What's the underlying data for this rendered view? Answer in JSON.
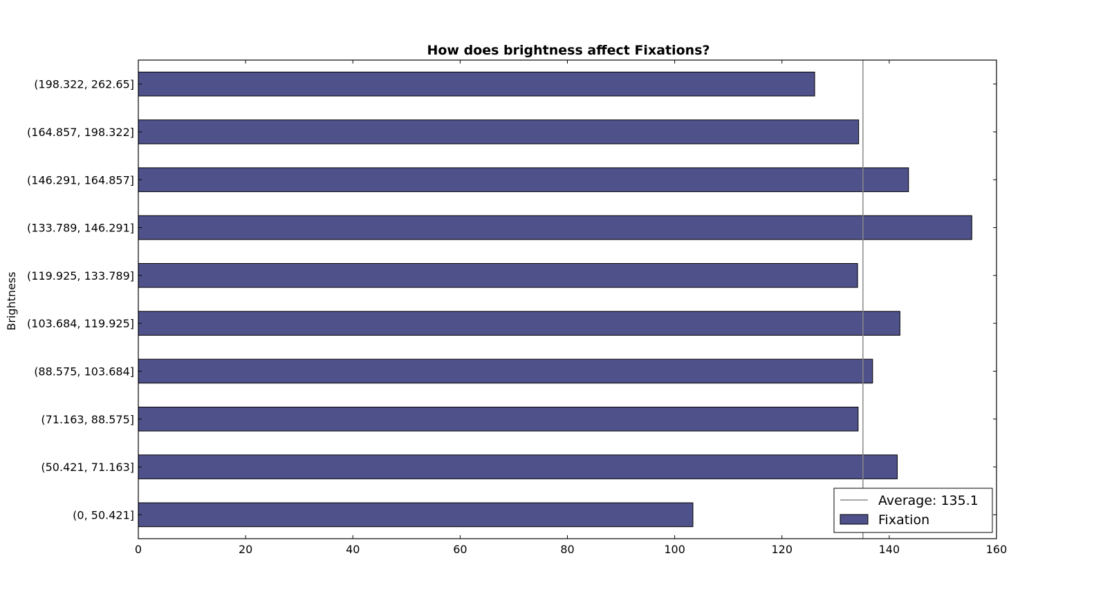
{
  "chart_data": {
    "type": "bar",
    "orientation": "horizontal",
    "title": "How does brightness affect Fixations?",
    "xlabel": "",
    "ylabel": "Brightness",
    "xlim": [
      0,
      160
    ],
    "xticks": [
      0,
      20,
      40,
      60,
      80,
      100,
      120,
      140,
      160
    ],
    "categories": [
      "(0, 50.421]",
      "(50.421, 71.163]",
      "(71.163, 88.575]",
      "(88.575, 103.684]",
      "(103.684, 119.925]",
      "(119.925, 133.789]",
      "(133.789, 146.291]",
      "(146.291, 164.857]",
      "(164.857, 198.322]",
      "(198.322, 262.65]"
    ],
    "series": [
      {
        "name": "Fixation",
        "color": "#4f518b",
        "values": [
          103.4,
          141.5,
          134.2,
          136.9,
          142.0,
          134.1,
          155.4,
          143.6,
          134.3,
          126.1
        ]
      }
    ],
    "reference_line": {
      "label": "Average: 135.1",
      "value": 135.1,
      "color": "#888888"
    },
    "legend": {
      "position": "lower-right",
      "entries": [
        "Average: 135.1",
        "Fixation"
      ]
    },
    "grid": false
  }
}
